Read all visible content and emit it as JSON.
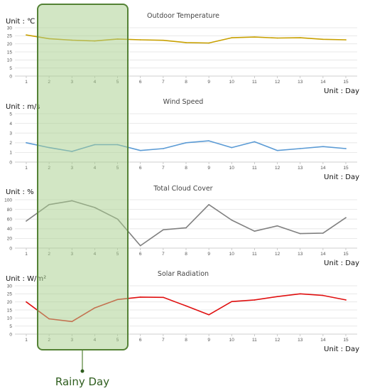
{
  "chart_data": [
    {
      "type": "line",
      "title": "Outdoor Temperature",
      "ylabel": "Unit : ℃",
      "xlabel": "Unit : Day",
      "categories": [
        1,
        2,
        3,
        4,
        5,
        6,
        7,
        8,
        9,
        10,
        11,
        12,
        13,
        14,
        15
      ],
      "ylim": [
        0,
        30
      ],
      "yticks": [
        0,
        5,
        10,
        15,
        20,
        25,
        30
      ],
      "color": "#c8a000",
      "values": [
        25.5,
        23.2,
        22.3,
        21.8,
        23.0,
        22.5,
        22.2,
        20.8,
        20.5,
        23.8,
        24.2,
        23.6,
        23.8,
        22.8,
        22.5
      ]
    },
    {
      "type": "line",
      "title": "Wind Speed",
      "ylabel": "Unit : m/s",
      "xlabel": "Unit : Day",
      "categories": [
        1,
        2,
        3,
        4,
        5,
        6,
        7,
        8,
        9,
        10,
        11,
        12,
        13,
        14,
        15
      ],
      "ylim": [
        0,
        5
      ],
      "yticks": [
        0,
        1,
        2,
        3,
        4,
        5
      ],
      "color": "#5b9bd5",
      "values": [
        2.0,
        1.5,
        1.1,
        1.8,
        1.8,
        1.2,
        1.4,
        2.0,
        2.2,
        1.5,
        2.1,
        1.2,
        1.4,
        1.6,
        1.4
      ]
    },
    {
      "type": "line",
      "title": "Total Cloud Cover",
      "ylabel": "Unit : %",
      "xlabel": "Unit : Day",
      "categories": [
        1,
        2,
        3,
        4,
        5,
        6,
        7,
        8,
        9,
        10,
        11,
        12,
        13,
        14,
        15
      ],
      "ylim": [
        0,
        100
      ],
      "yticks": [
        0,
        20,
        40,
        60,
        80,
        100
      ],
      "color": "#808080",
      "values": [
        56,
        90,
        98,
        84,
        60,
        5,
        38,
        42,
        90,
        58,
        35,
        46,
        30,
        31,
        63
      ]
    },
    {
      "type": "line",
      "title": "Solar Radiation",
      "ylabel": "Unit : W/m²",
      "xlabel": "Unit : Day",
      "categories": [
        1,
        2,
        3,
        4,
        5,
        6,
        7,
        8,
        9,
        10,
        11,
        12,
        13,
        14,
        15
      ],
      "ylim": [
        0,
        30
      ],
      "yticks": [
        0,
        5,
        10,
        15,
        20,
        25,
        30
      ],
      "color": "#e01010",
      "values": [
        20.0,
        9.5,
        7.8,
        16.3,
        21.5,
        23.0,
        22.8,
        17.5,
        12.0,
        20.2,
        21.2,
        23.3,
        25.0,
        24.0,
        21.2
      ]
    }
  ],
  "annotation": {
    "label": "Rainy Day",
    "days": [
      2,
      3,
      4,
      5
    ],
    "fill_color": "#a9d08e",
    "border_color": "#548235"
  }
}
